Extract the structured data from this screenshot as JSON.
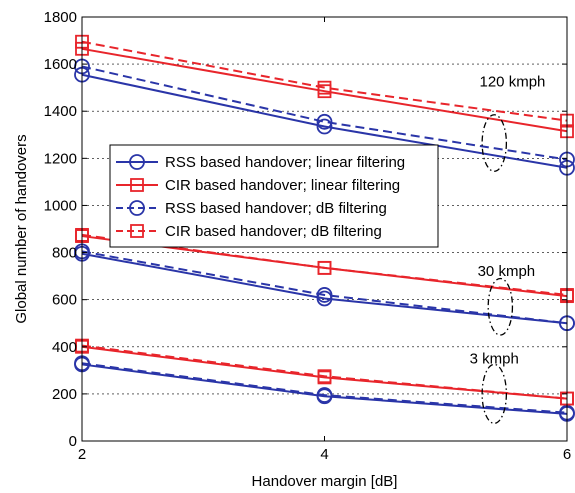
{
  "chart_data": {
    "type": "line",
    "xlabel": "Handover margin [dB]",
    "ylabel": "Global number of handovers",
    "xlim": [
      2,
      6
    ],
    "ylim": [
      0,
      1800
    ],
    "xticks": [
      2,
      4,
      6
    ],
    "yticks": [
      0,
      200,
      400,
      600,
      800,
      1000,
      1200,
      1400,
      1600,
      1800
    ],
    "grid": "horizontal dashed",
    "legend_position": "center-left",
    "x": [
      2,
      4,
      6
    ],
    "series": [
      {
        "name": "RSS based handover; linear filtering",
        "group": "120 kmph",
        "color": "#2a35a8",
        "dash": "solid",
        "marker": "circle",
        "values": [
          1555,
          1335,
          1160
        ]
      },
      {
        "name": "CIR based handover; linear filtering",
        "group": "120 kmph",
        "color": "#e8252b",
        "dash": "solid",
        "marker": "square",
        "values": [
          1665,
          1485,
          1315
        ]
      },
      {
        "name": "RSS based handover; dB filtering",
        "group": "120 kmph",
        "color": "#2a35a8",
        "dash": "dashed",
        "marker": "circle",
        "values": [
          1590,
          1355,
          1195
        ]
      },
      {
        "name": "CIR based handover; dB filtering",
        "group": "120 kmph",
        "color": "#e8252b",
        "dash": "dashed",
        "marker": "square",
        "values": [
          1695,
          1500,
          1360
        ]
      },
      {
        "name": "RSS based handover; linear filtering",
        "group": "30 kmph",
        "color": "#2a35a8",
        "dash": "solid",
        "marker": "circle",
        "values": [
          795,
          605,
          500
        ]
      },
      {
        "name": "CIR based handover; linear filtering",
        "group": "30 kmph",
        "color": "#e8252b",
        "dash": "solid",
        "marker": "square",
        "values": [
          870,
          735,
          615
        ]
      },
      {
        "name": "RSS based handover; dB filtering",
        "group": "30 kmph",
        "color": "#2a35a8",
        "dash": "dashed",
        "marker": "circle",
        "values": [
          805,
          620,
          500
        ]
      },
      {
        "name": "CIR based handover; dB filtering",
        "group": "30 kmph",
        "color": "#e8252b",
        "dash": "dashed",
        "marker": "square",
        "values": [
          875,
          735,
          620
        ]
      },
      {
        "name": "RSS based handover; linear filtering",
        "group": "3 kmph",
        "color": "#2a35a8",
        "dash": "solid",
        "marker": "circle",
        "values": [
          325,
          190,
          115
        ]
      },
      {
        "name": "CIR based handover; linear filtering",
        "group": "3 kmph",
        "color": "#e8252b",
        "dash": "solid",
        "marker": "square",
        "values": [
          400,
          270,
          180
        ]
      },
      {
        "name": "RSS based handover; dB filtering",
        "group": "3 kmph",
        "color": "#2a35a8",
        "dash": "dashed",
        "marker": "circle",
        "values": [
          330,
          195,
          120
        ]
      },
      {
        "name": "CIR based handover; dB filtering",
        "group": "3 kmph",
        "color": "#e8252b",
        "dash": "dashed",
        "marker": "square",
        "values": [
          405,
          275,
          180
        ]
      }
    ],
    "legend": [
      {
        "label": "RSS based handover; linear filtering",
        "color": "#2a35a8",
        "dash": "solid",
        "marker": "circle"
      },
      {
        "label": "CIR based handover; linear filtering",
        "color": "#e8252b",
        "dash": "solid",
        "marker": "square"
      },
      {
        "label": "RSS based handover; dB filtering",
        "color": "#2a35a8",
        "dash": "dashed",
        "marker": "circle"
      },
      {
        "label": "CIR based handover; dB filtering",
        "color": "#e8252b",
        "dash": "dashed",
        "marker": "square"
      }
    ],
    "annotations": [
      {
        "text": "120 kmph",
        "x": 5.55,
        "y": 1505,
        "ellipse_center": [
          5.4,
          1265
        ],
        "ellipse_radius": [
          0.1,
          120
        ]
      },
      {
        "text": "30 kmph",
        "x": 5.5,
        "y": 700,
        "ellipse_center": [
          5.45,
          570
        ],
        "ellipse_radius": [
          0.1,
          120
        ]
      },
      {
        "text": "3 kmph",
        "x": 5.4,
        "y": 330,
        "ellipse_center": [
          5.4,
          200
        ],
        "ellipse_radius": [
          0.1,
          125
        ]
      }
    ]
  }
}
